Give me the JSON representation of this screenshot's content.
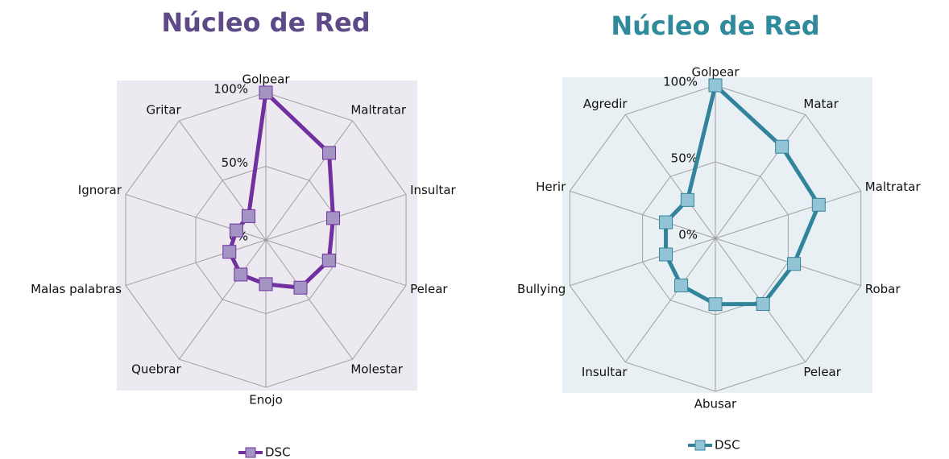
{
  "chart_data": [
    {
      "type": "radar",
      "title": "Núcleo de Red",
      "categories": [
        "Golpear",
        "Maltratar",
        "Insultar",
        "Pelear",
        "Molestar",
        "Enojo",
        "Quebrar",
        "Malas palabras",
        "Ignorar",
        "Gritar"
      ],
      "series": [
        {
          "name": "DSC",
          "color": "#7030a0",
          "marker_color": "#a394c4",
          "values": [
            100,
            73,
            48,
            45,
            40,
            30,
            29,
            26,
            21,
            20
          ]
        }
      ],
      "ylim": [
        0,
        100
      ],
      "yticks": [
        {
          "value": 0,
          "label": "0%"
        },
        {
          "value": 50,
          "label": "50%"
        },
        {
          "value": 100,
          "label": "100%"
        }
      ],
      "grid": true,
      "background": "#ece9f0",
      "title_color": "#5e4a87"
    },
    {
      "type": "radar",
      "title": "Núcleo de Red",
      "categories": [
        "Golpear",
        "Matar",
        "Maltratar",
        "Robar",
        "Pelear",
        "Abusar",
        "Insultar",
        "Bullying",
        "Herir",
        "Agredir"
      ],
      "series": [
        {
          "name": "DSC",
          "color": "#31849b",
          "marker_color": "#93c4d6",
          "values": [
            100,
            74,
            71,
            54,
            53,
            43,
            38,
            34,
            34,
            31
          ]
        }
      ],
      "ylim": [
        0,
        100
      ],
      "yticks": [
        {
          "value": 0,
          "label": "0%"
        },
        {
          "value": 50,
          "label": "50%"
        },
        {
          "value": 100,
          "label": "100%"
        }
      ],
      "grid": true,
      "background": "#e9f0f4",
      "title_color": "#2f8a9c"
    }
  ]
}
